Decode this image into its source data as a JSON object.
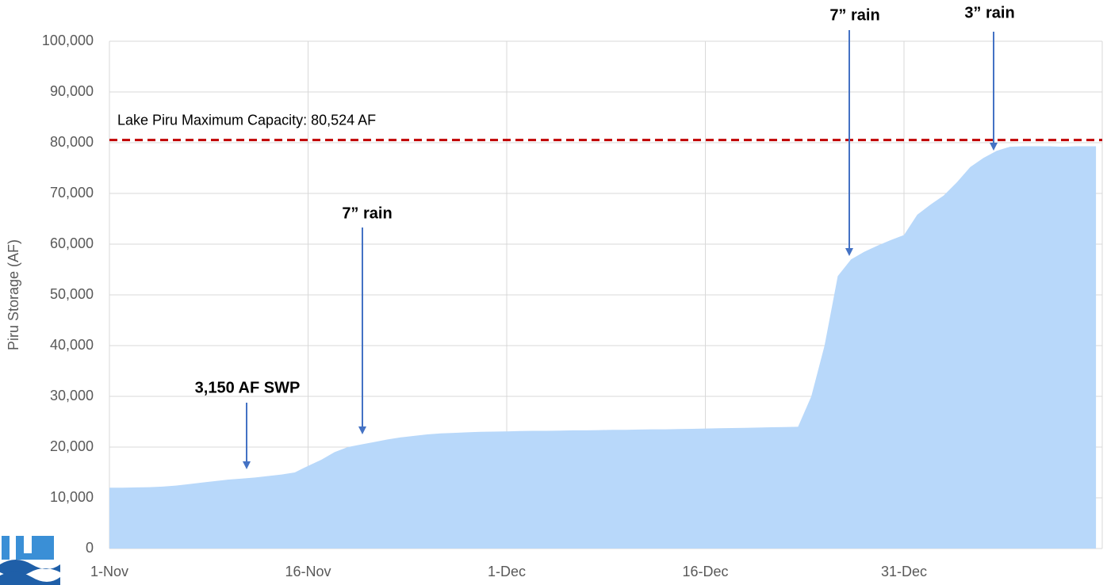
{
  "chart_data": {
    "type": "area",
    "y_label": "Piru Storage (AF)",
    "categories": [
      "1-Nov",
      null,
      null,
      null,
      null,
      null,
      null,
      null,
      null,
      null,
      null,
      null,
      null,
      null,
      null,
      "16-Nov",
      null,
      null,
      null,
      null,
      null,
      null,
      null,
      null,
      null,
      null,
      null,
      null,
      null,
      null,
      "1-Dec",
      null,
      null,
      null,
      null,
      null,
      null,
      null,
      null,
      null,
      null,
      null,
      null,
      null,
      null,
      "16-Dec",
      null,
      null,
      null,
      null,
      null,
      null,
      null,
      null,
      null,
      null,
      null,
      null,
      null,
      null,
      "31-Dec",
      null,
      null,
      null,
      null,
      null,
      null,
      null,
      null,
      null,
      null,
      null,
      null,
      null,
      null
    ],
    "series": [
      {
        "name": "Piru Storage",
        "color": "#b8d8fa",
        "values": [
          12000,
          12000,
          12050,
          12100,
          12200,
          12400,
          12700,
          13000,
          13300,
          13600,
          13800,
          14000,
          14300,
          14600,
          15000,
          16300,
          17500,
          19000,
          20000,
          20500,
          21000,
          21500,
          21900,
          22200,
          22500,
          22700,
          22800,
          22900,
          23000,
          23050,
          23100,
          23150,
          23200,
          23200,
          23250,
          23300,
          23300,
          23350,
          23400,
          23400,
          23450,
          23500,
          23500,
          23550,
          23600,
          23650,
          23700,
          23750,
          23800,
          23850,
          23900,
          23950,
          24000,
          30000,
          40000,
          53700,
          57000,
          58500,
          59700,
          60800,
          61800,
          65800,
          67800,
          69600,
          72200,
          75200,
          77000,
          78400,
          79200,
          79300,
          79300,
          79300,
          79200,
          79300,
          79300
        ]
      }
    ],
    "ylim": [
      0,
      100000
    ],
    "yticks": [
      0,
      {
        "value": 10000,
        "label": "10,000"
      },
      {
        "value": 20000,
        "label": "20,000"
      },
      {
        "value": 30000,
        "label": "30,000"
      },
      {
        "value": 40000,
        "label": "40,000"
      },
      {
        "value": 50000,
        "label": "50,000"
      },
      {
        "value": 60000,
        "label": "60,000"
      },
      {
        "value": 70000,
        "label": "70,000"
      },
      {
        "value": 80000,
        "label": "80,000"
      },
      {
        "value": 90000,
        "label": "90,000"
      },
      {
        "value": 100000,
        "label": "100,000"
      }
    ],
    "grid": true,
    "reference_line": {
      "value": 80524,
      "label": "Lake Piru Maximum Capacity: 80,524 AF",
      "color": "#c00000"
    },
    "annotations": [
      "3,150 AF SWP",
      "7” rain",
      "7” rain",
      "3” rain"
    ]
  }
}
